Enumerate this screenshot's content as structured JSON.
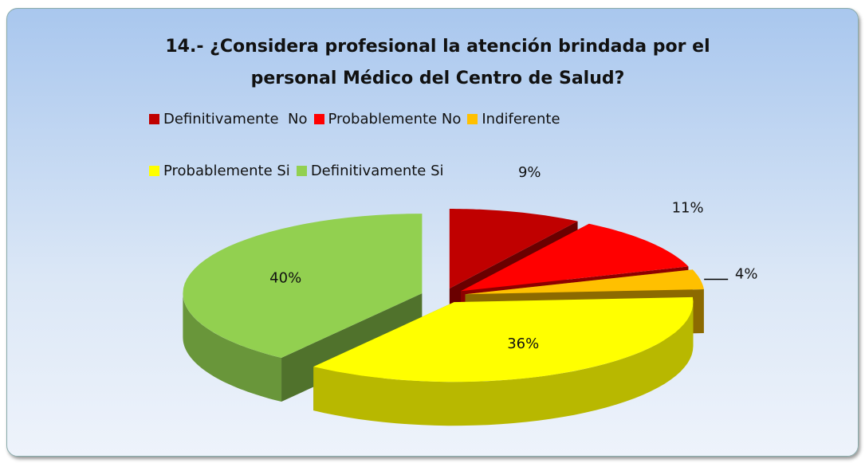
{
  "chart_data": {
    "type": "pie3d",
    "title": "14.- ¿Considera profesional la atención brindada por el personal Médico del Centro de Salud?",
    "categories": [
      "Definitivamente  No",
      "Probablemente No",
      "Indiferente",
      "Probablemente Si",
      "Definitivamente Si"
    ],
    "values": [
      9,
      11,
      4,
      36,
      40
    ],
    "value_labels": [
      "9%",
      "11%",
      "4%",
      "36%",
      "40%"
    ],
    "colors": [
      "#c00000",
      "#ff0000",
      "#ffc000",
      "#ffff00",
      "#92d050"
    ],
    "legend": "top"
  }
}
